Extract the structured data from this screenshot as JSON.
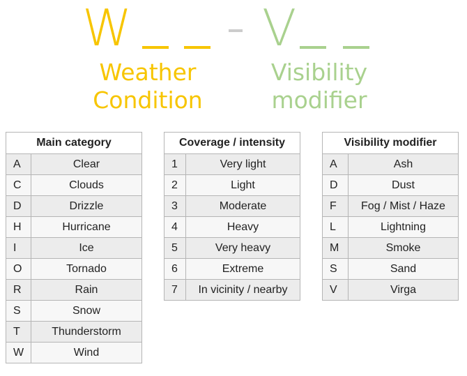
{
  "code": {
    "weather_letter": "W",
    "visibility_letter": "V",
    "weather_color": "#f7c500",
    "visibility_color": "#a9d18e"
  },
  "captions": {
    "weather_line1": "Weather",
    "weather_line2": "Condition",
    "visibility_line1": "Visibility",
    "visibility_line2": "modifier"
  },
  "main_category": {
    "header": "Main category",
    "rows": [
      {
        "code": "A",
        "label": "Clear"
      },
      {
        "code": "C",
        "label": "Clouds"
      },
      {
        "code": "D",
        "label": "Drizzle"
      },
      {
        "code": "H",
        "label": "Hurricane"
      },
      {
        "code": "I",
        "label": "Ice"
      },
      {
        "code": "O",
        "label": "Tornado"
      },
      {
        "code": "R",
        "label": "Rain"
      },
      {
        "code": "S",
        "label": "Snow"
      },
      {
        "code": "T",
        "label": "Thunderstorm"
      },
      {
        "code": "W",
        "label": "Wind"
      }
    ]
  },
  "coverage": {
    "header": "Coverage / intensity",
    "rows": [
      {
        "code": "1",
        "label": "Very light"
      },
      {
        "code": "2",
        "label": "Light"
      },
      {
        "code": "3",
        "label": "Moderate"
      },
      {
        "code": "4",
        "label": "Heavy"
      },
      {
        "code": "5",
        "label": "Very heavy"
      },
      {
        "code": "6",
        "label": "Extreme"
      },
      {
        "code": "7",
        "label": "In vicinity / nearby"
      }
    ]
  },
  "visibility_modifier": {
    "header": "Visibility modifier",
    "rows": [
      {
        "code": "A",
        "label": "Ash"
      },
      {
        "code": "D",
        "label": "Dust"
      },
      {
        "code": "F",
        "label": "Fog / Mist / Haze"
      },
      {
        "code": "L",
        "label": "Lightning"
      },
      {
        "code": "M",
        "label": "Smoke"
      },
      {
        "code": "S",
        "label": "Sand"
      },
      {
        "code": "V",
        "label": "Virga"
      }
    ]
  }
}
